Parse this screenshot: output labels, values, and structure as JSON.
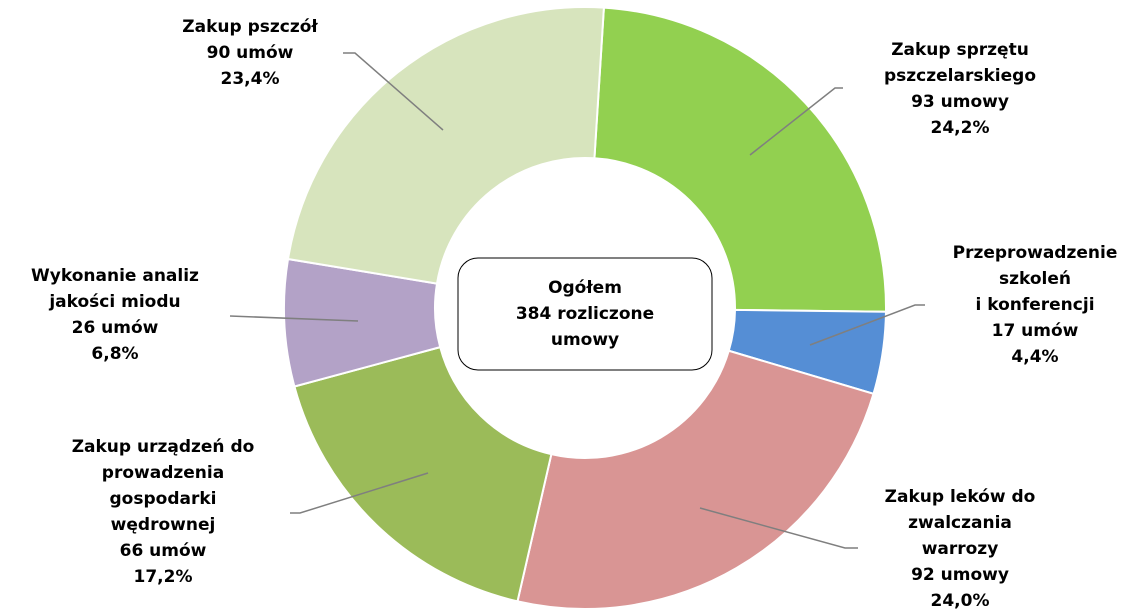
{
  "chart_data": {
    "type": "donut",
    "categories": [
      [
        "Zakup sprzętu",
        "pszczelarskiego"
      ],
      [
        "Przeprowadzenie",
        "szkoleń",
        "i konferencji"
      ],
      [
        "Zakup leków do",
        "zwalczania",
        "warrozy"
      ],
      [
        "Zakup urządzeń do",
        "prowadzenia",
        "gospodarki",
        "wędrownej"
      ],
      [
        "Wykonanie analiz",
        "jakości miodu"
      ],
      [
        "Zakup pszczół"
      ]
    ],
    "values": [
      24.2,
      4.4,
      24.0,
      17.2,
      6.8,
      23.4
    ],
    "value_labels": [
      "24,2%",
      "4,4%",
      "24,0%",
      "17,2%",
      "6,8%",
      "23,4%"
    ],
    "counts": [
      93,
      17,
      92,
      66,
      26,
      90
    ],
    "count_labels": [
      "93 umowy",
      "17 umów",
      "92 umowy",
      "66 umów",
      "26 umów",
      "90 umów"
    ],
    "colors": [
      "#92d050",
      "#558ed5",
      "#d99594",
      "#9bbb59",
      "#b3a2c7",
      "#d7e4bd"
    ],
    "center_label": [
      "Ogółem",
      "384 rozliczone",
      "umowy"
    ]
  }
}
